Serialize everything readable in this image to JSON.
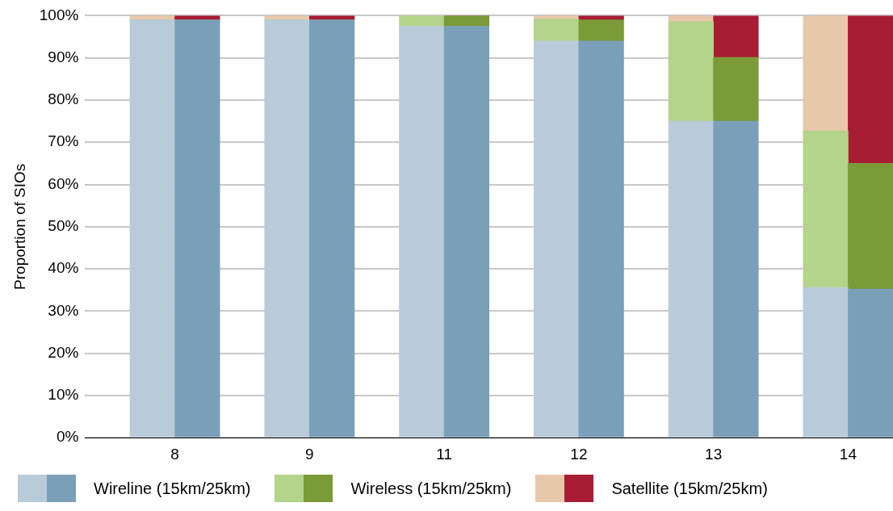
{
  "chart_data": {
    "type": "bar",
    "stacked": true,
    "ylabel": "Proportion of SIOs",
    "categories": [
      null,
      "8",
      null,
      null,
      "9",
      null,
      null,
      "11",
      null,
      null,
      "12",
      null,
      null,
      "13",
      null,
      null,
      "14",
      null
    ],
    "series": [
      {
        "name": "Wireline (15km/25km)",
        "colors": [
          null,
          "#b9cbd9",
          "#7a9fb8",
          null,
          "#b9cbd9",
          "#7a9fb8",
          null,
          "#b9cbd9",
          "#7a9fb8",
          null,
          "#b9cbd9",
          "#7a9fb8",
          null,
          "#b9cbd9",
          "#7a9fb8",
          null,
          "#b9cbd9",
          "#7a9fb8"
        ],
        "values": [
          null,
          99,
          99,
          null,
          99,
          99,
          null,
          97.5,
          97.5,
          null,
          94,
          94,
          null,
          75,
          75,
          null,
          35.6,
          35.2
        ]
      },
      {
        "name": "Wireless (15km/25km)",
        "colors": [
          null,
          "#b4d38b",
          "#7b9a38",
          null,
          "#b4d38b",
          "#7b9a38",
          null,
          "#b4d38b",
          "#7b9a38",
          null,
          "#b4d38b",
          "#7b9a38",
          null,
          "#b4d38b",
          "#7b9a38",
          null,
          "#b4d38b",
          "#7b9a38"
        ],
        "values": [
          null,
          0,
          0,
          null,
          0,
          0,
          null,
          2.5,
          2.5,
          null,
          5.2,
          5,
          null,
          23.6,
          15.1,
          null,
          37.1,
          29.8
        ]
      },
      {
        "name": "Satellite (15km/25km)",
        "colors": [
          null,
          "#e8c8aa",
          "#a81c34",
          null,
          "#e8c8aa",
          "#a81c34",
          null,
          "#e8c8aa",
          "#a81c34",
          null,
          "#e8c8aa",
          "#a81c34",
          null,
          "#e8c8aa",
          "#a81c34",
          null,
          "#e8c8aa",
          "#a81c34"
        ],
        "values": [
          null,
          1,
          1,
          null,
          1,
          1,
          null,
          0,
          0,
          null,
          0.8,
          1,
          null,
          1.4,
          9.9,
          null,
          27.3,
          35
        ]
      }
    ],
    "ylim": [
      0,
      100
    ],
    "yticks": [
      {
        "value": 0,
        "label": "0%"
      },
      {
        "value": 10,
        "label": "10%"
      },
      {
        "value": 20,
        "label": "20%"
      },
      {
        "value": 30,
        "label": "30%"
      },
      {
        "value": 40,
        "label": "40%"
      },
      {
        "value": 50,
        "label": "50%"
      },
      {
        "value": 60,
        "label": "60%"
      },
      {
        "value": 70,
        "label": "70%"
      },
      {
        "value": 80,
        "label": "80%"
      },
      {
        "value": 90,
        "label": "90%"
      },
      {
        "value": 100,
        "label": "100%"
      }
    ],
    "grid": "y",
    "legend": "bottom"
  }
}
